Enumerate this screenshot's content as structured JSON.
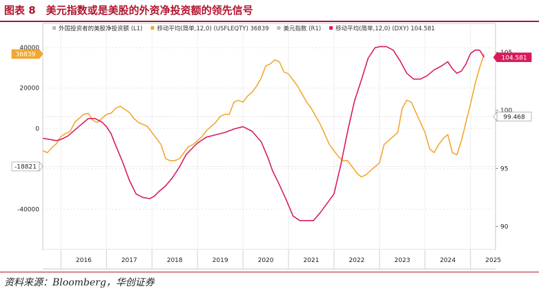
{
  "header": {
    "title": "图表 8　美元指数或是美股的外资净投资额的领先信号"
  },
  "footer": {
    "source": "资料来源：Bloomberg，华创证券"
  },
  "chart_data": {
    "type": "line",
    "x_axis": {
      "tick_labels": [
        "2016",
        "2017",
        "2018",
        "2019",
        "2020",
        "2021",
        "2022",
        "2023",
        "2024",
        "2025"
      ],
      "range": [
        2015.6,
        2025.55
      ]
    },
    "y_left": {
      "ticks": [
        40000,
        20000,
        0,
        -20000,
        -40000
      ],
      "range": [
        -60000,
        52000
      ],
      "guide_values": [
        -18821
      ]
    },
    "y_right": {
      "ticks": [
        105,
        100,
        95,
        90
      ],
      "range": [
        88,
        107.5
      ],
      "guide_values": [
        99.468
      ]
    },
    "legend": [
      {
        "label": "外国投资者的美股净投资额 (L1)",
        "marker": "#bbbbbb"
      },
      {
        "label": "移动平均(简单,12,0) (USFLEQTY) 36839",
        "marker": "#f0a830"
      },
      {
        "label": "美元指数 (R1)",
        "marker": "#bbbbbb"
      },
      {
        "label": "移动平均(简单,12,0) (DXY) 104.581",
        "marker": "#d81b5a"
      }
    ],
    "last_value_tags": [
      {
        "series": "USFLEQTY",
        "value": "36839",
        "axis": "left",
        "color": "#f0a830"
      },
      {
        "series": "DXY",
        "value": "104.581",
        "axis": "right",
        "color": "#d81b5a"
      },
      {
        "value": "-18821",
        "axis": "left",
        "color": "#ffffff"
      },
      {
        "value": "99.468",
        "axis": "right",
        "color": "#ffffff"
      }
    ],
    "series": [
      {
        "id": "USFLEQTY",
        "name": "移动平均(简单,12,0) (USFLEQTY)",
        "axis": "left",
        "color": "#f0a830",
        "x": [
          2015.6,
          2015.7,
          2015.8,
          2015.9,
          2016.0,
          2016.1,
          2016.2,
          2016.3,
          2016.4,
          2016.5,
          2016.6,
          2016.7,
          2016.8,
          2016.9,
          2017.0,
          2017.1,
          2017.2,
          2017.3,
          2017.4,
          2017.5,
          2017.6,
          2017.7,
          2017.8,
          2017.9,
          2018.0,
          2018.1,
          2018.2,
          2018.3,
          2018.4,
          2018.5,
          2018.6,
          2018.7,
          2018.8,
          2018.9,
          2019.0,
          2019.1,
          2019.2,
          2019.3,
          2019.4,
          2019.5,
          2019.6,
          2019.7,
          2019.8,
          2019.9,
          2020.0,
          2020.1,
          2020.2,
          2020.3,
          2020.4,
          2020.5,
          2020.6,
          2020.7,
          2020.8,
          2020.9,
          2021.0,
          2021.1,
          2021.2,
          2021.3,
          2021.4,
          2021.5,
          2021.6,
          2021.7,
          2021.8,
          2021.9,
          2022.0,
          2022.1,
          2022.2,
          2022.3,
          2022.4,
          2022.5,
          2022.6,
          2022.7,
          2022.8,
          2022.9,
          2023.0,
          2023.1,
          2023.2,
          2023.3,
          2023.4,
          2023.5,
          2023.6,
          2023.7,
          2023.8,
          2023.9,
          2024.0,
          2024.1,
          2024.2,
          2024.3,
          2024.4,
          2024.5,
          2024.6,
          2024.7,
          2024.8,
          2024.9,
          2025.0,
          2025.1,
          2025.2,
          2025.3
        ],
        "values": [
          -11000,
          -12000,
          -9500,
          -7500,
          -4000,
          -2500,
          -1500,
          3000,
          5000,
          7000,
          7500,
          4000,
          3000,
          5000,
          7000,
          7500,
          10000,
          11000,
          9500,
          8000,
          5000,
          3000,
          2000,
          1000,
          -2000,
          -5000,
          -8000,
          -15000,
          -16000,
          -16000,
          -15000,
          -12000,
          -9000,
          -8000,
          -6000,
          -4000,
          -1000,
          1000,
          3000,
          6000,
          7000,
          7000,
          13000,
          14000,
          13000,
          16000,
          18000,
          21000,
          25000,
          31000,
          32000,
          34000,
          33000,
          28000,
          27000,
          24000,
          21000,
          17000,
          13000,
          10000,
          6000,
          2000,
          -3000,
          -8000,
          -11000,
          -14000,
          -16000,
          -16000,
          -19000,
          -22000,
          -24000,
          -23000,
          -21000,
          -19000,
          -17000,
          -8000,
          -6000,
          -4000,
          -2000,
          10000,
          14000,
          13000,
          8000,
          3000,
          -2000,
          -10000,
          -12000,
          -8000,
          -5000,
          -3000,
          -12000,
          -13000,
          -6000,
          3000,
          12000,
          22000,
          30000,
          36839
        ]
      },
      {
        "id": "DXY",
        "name": "移动平均(简单,12,0) (DXY)",
        "axis": "right",
        "color": "#d81b5a",
        "x": [
          2015.6,
          2015.75,
          2015.9,
          2016.0,
          2016.15,
          2016.3,
          2016.45,
          2016.6,
          2016.75,
          2016.9,
          2017.0,
          2017.1,
          2017.2,
          2017.35,
          2017.5,
          2017.65,
          2017.8,
          2017.95,
          2018.05,
          2018.15,
          2018.3,
          2018.45,
          2018.6,
          2018.75,
          2018.9,
          2019.0,
          2019.2,
          2019.4,
          2019.6,
          2019.8,
          2020.0,
          2020.2,
          2020.4,
          2020.55,
          2020.65,
          2020.8,
          2020.95,
          2021.1,
          2021.25,
          2021.4,
          2021.55,
          2021.7,
          2021.85,
          2022.0,
          2022.15,
          2022.3,
          2022.45,
          2022.6,
          2022.75,
          2022.9,
          2023.0,
          2023.15,
          2023.3,
          2023.45,
          2023.6,
          2023.75,
          2023.9,
          2024.05,
          2024.2,
          2024.35,
          2024.5,
          2024.6,
          2024.7,
          2024.8,
          2024.9,
          2025.0,
          2025.1,
          2025.2,
          2025.3
        ],
        "values": [
          97.6,
          97.5,
          97.4,
          97.5,
          97.8,
          98.3,
          98.8,
          99.3,
          99.3,
          99.0,
          98.6,
          98.0,
          97.0,
          95.6,
          94.0,
          92.8,
          92.5,
          92.4,
          92.6,
          93.0,
          93.5,
          94.2,
          95.1,
          96.2,
          96.8,
          97.2,
          97.7,
          97.9,
          98.1,
          98.4,
          98.6,
          98.2,
          97.3,
          95.9,
          94.8,
          93.6,
          92.3,
          90.9,
          90.5,
          90.5,
          90.5,
          91.2,
          92.0,
          92.8,
          95.3,
          98.2,
          100.8,
          102.6,
          104.5,
          105.4,
          105.5,
          105.5,
          105.2,
          104.3,
          103.2,
          102.7,
          102.7,
          103.0,
          103.5,
          103.8,
          104.2,
          103.6,
          103.2,
          103.4,
          104.0,
          104.9,
          105.2,
          105.2,
          104.581
        ]
      }
    ]
  }
}
